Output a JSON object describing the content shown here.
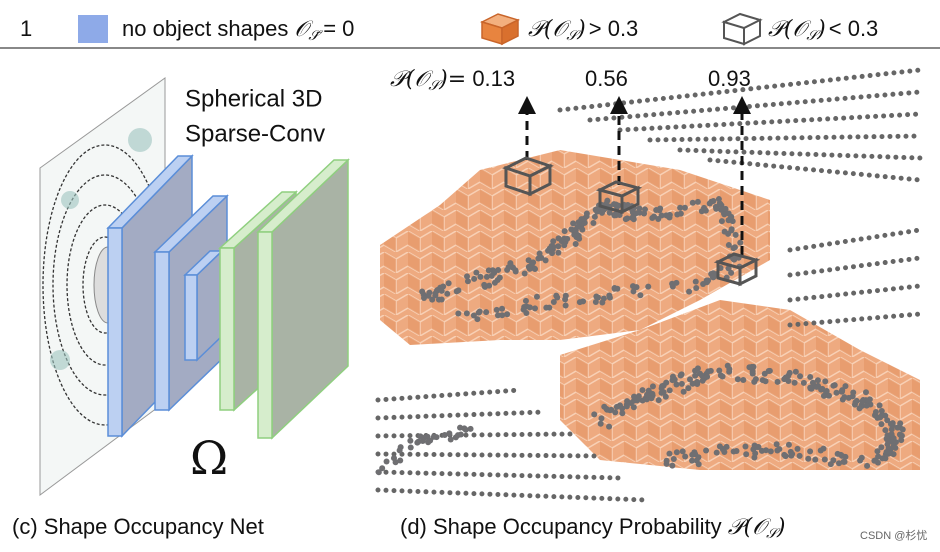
{
  "figure_number": "1",
  "legend": [
    {
      "label": "no object shapes",
      "math": "𝒪",
      "subscript": "𝒮̄",
      "relation": "= 0"
    },
    {
      "math": "𝒫(𝒪",
      "subscript": "𝒮",
      "close": ")",
      "relation": "> 0.3"
    },
    {
      "math": "𝒫(𝒪",
      "subscript": "𝒮",
      "close": ")",
      "relation": "< 0.3"
    }
  ],
  "left_panel": {
    "network_label": [
      "Spherical 3D",
      "Sparse-Conv"
    ],
    "symbol": "Ω",
    "caption": "(c) Shape Occupancy Net"
  },
  "right_panel": {
    "probability_prefix": {
      "math": "𝒫(𝒪",
      "subscript": "𝒮",
      "close": ")="
    },
    "probabilities": [
      "0.13",
      "0.56",
      "0.93"
    ],
    "caption": {
      "text": "(d) Shape Occupancy Probability",
      "math": "𝒫(𝒪",
      "subscript": "𝒮",
      "close": ")"
    }
  },
  "watermark": "CSDN @杉忧"
}
